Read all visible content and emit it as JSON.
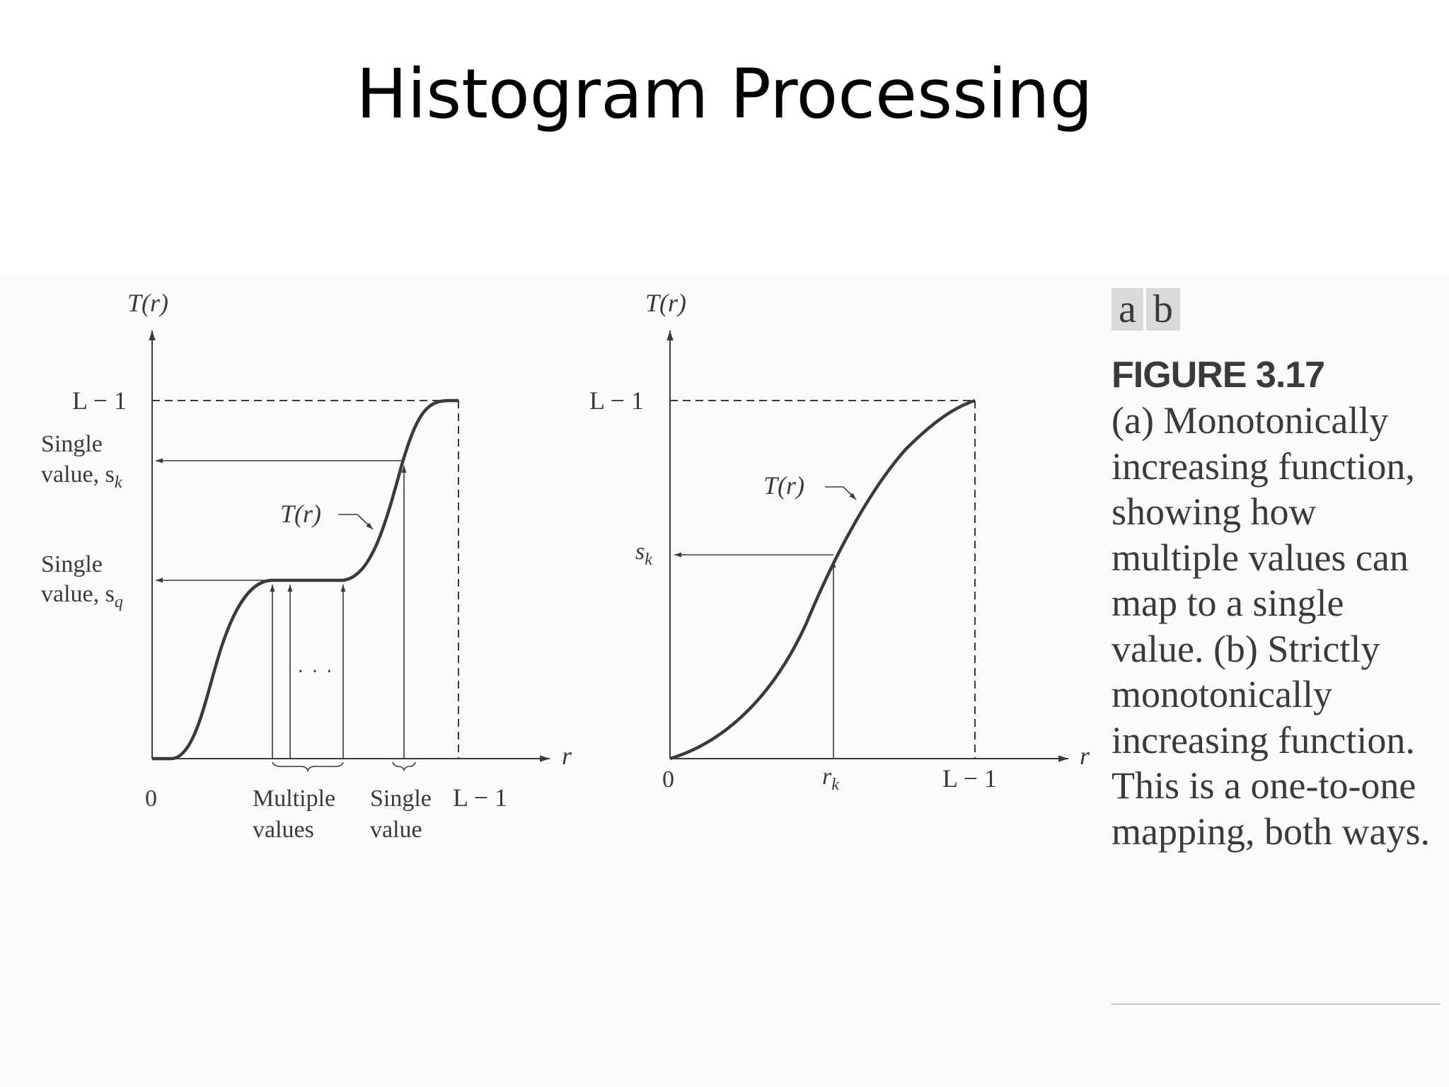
{
  "slide": {
    "title": "Histogram Processing"
  },
  "figure": {
    "panel_labels": [
      "a",
      "b"
    ],
    "number": "FIGURE 3.17",
    "caption": "(a) Monotonically increasing function, showing how multiple values can map to a single value. (b) Strictly monotonically increasing function. This is a one-to-one mapping, both ways.",
    "panel_a": {
      "y_axis_label": "T(r)",
      "x_axis_label": "r",
      "origin_label": "0",
      "y_max_label": "L − 1",
      "x_max_label": "L − 1",
      "curve_label": "T(r)",
      "sk_label": [
        "Single",
        "value, s",
        "k"
      ],
      "sq_label": [
        "Single",
        "value, s",
        "q"
      ],
      "multiple_values_label": [
        "Multiple",
        "values"
      ],
      "single_value_label": [
        "Single",
        "value"
      ],
      "ellipsis": "· · ·"
    },
    "panel_b": {
      "y_axis_label": "T(r)",
      "x_axis_label": "r",
      "origin_label": "0",
      "y_max_label": "L − 1",
      "x_max_label": "L − 1",
      "curve_label": "T(r)",
      "sk_label": [
        "s",
        "k"
      ],
      "rk_label": [
        "r",
        "k"
      ]
    }
  }
}
